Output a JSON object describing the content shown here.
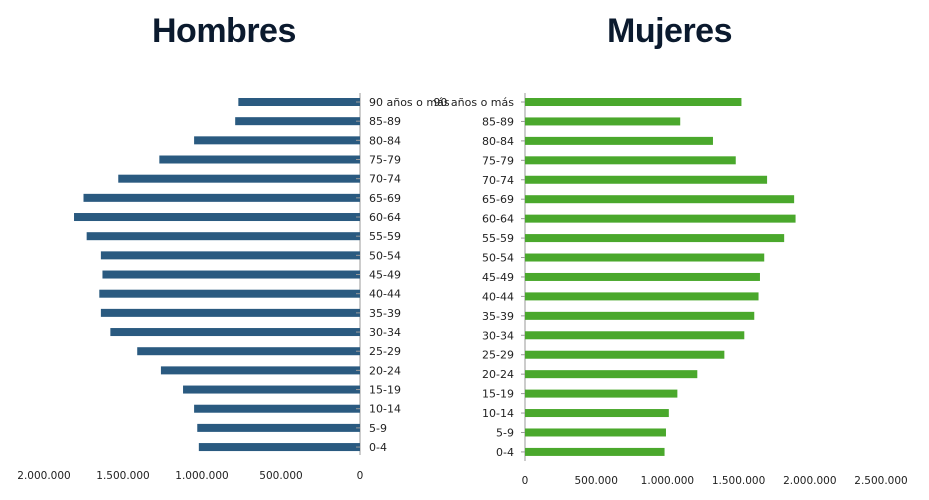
{
  "chart_data": [
    {
      "type": "bar",
      "orientation": "horizontal",
      "direction": "right-to-left",
      "title": "Hombres",
      "color": "#2a5a80",
      "categories": [
        "90 años o más",
        "85-89",
        "80-84",
        "75-79",
        "70-74",
        "65-69",
        "60-64",
        "55-59",
        "50-54",
        "45-49",
        "40-44",
        "35-39",
        "30-34",
        "25-29",
        "20-24",
        "15-19",
        "10-14",
        "5-9",
        "0-4"
      ],
      "values": [
        770000,
        790000,
        1050000,
        1270000,
        1530000,
        1750000,
        1810000,
        1730000,
        1640000,
        1630000,
        1650000,
        1640000,
        1580000,
        1410000,
        1260000,
        1120000,
        1050000,
        1030000,
        1020000
      ],
      "xlim": [
        0,
        2000000
      ],
      "xticks": [
        "2.000.000",
        "1.500.000",
        "1.000.000",
        "500.000",
        "0"
      ],
      "xtick_values": [
        2000000,
        1500000,
        1000000,
        500000,
        0
      ]
    },
    {
      "type": "bar",
      "orientation": "horizontal",
      "direction": "left-to-right",
      "title": "Mujeres",
      "color": "#4aa82c",
      "categories": [
        "90 años o más",
        "85-89",
        "80-84",
        "75-79",
        "70-74",
        "65-69",
        "60-64",
        "55-59",
        "50-54",
        "45-49",
        "40-44",
        "35-39",
        "30-34",
        "25-29",
        "20-24",
        "15-19",
        "10-14",
        "5-9",
        "0-4"
      ],
      "values": [
        1520000,
        1090000,
        1320000,
        1480000,
        1700000,
        1890000,
        1900000,
        1820000,
        1680000,
        1650000,
        1640000,
        1610000,
        1540000,
        1400000,
        1210000,
        1070000,
        1010000,
        990000,
        980000
      ],
      "xlim": [
        0,
        2500000
      ],
      "xticks": [
        "0",
        "500.000",
        "1.000.000",
        "1.500.000",
        "2.000.000",
        "2.500.000"
      ],
      "xtick_values": [
        0,
        500000,
        1000000,
        1500000,
        2000000,
        2500000
      ]
    }
  ]
}
